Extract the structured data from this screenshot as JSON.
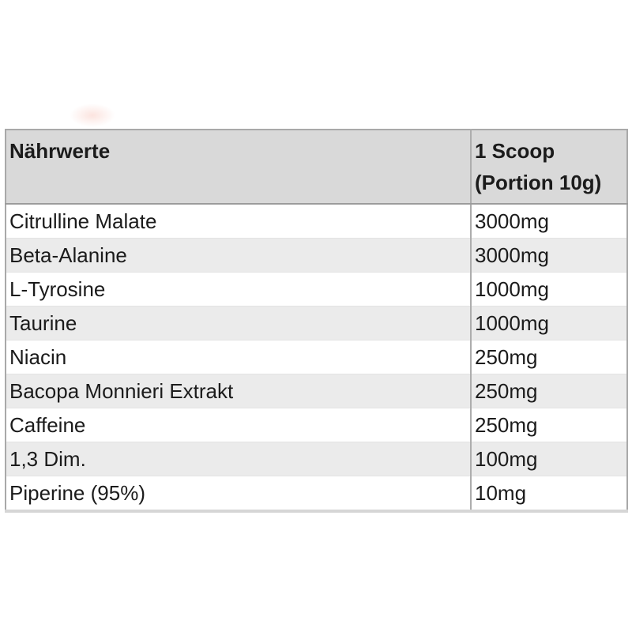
{
  "page": {
    "background_color": "#ffffff",
    "text_color": "#1b1b1b"
  },
  "table": {
    "header": {
      "nutrients_label": "Nährwerte",
      "serving_line1": "1 Scoop",
      "serving_line2": "(Portion 10g)"
    },
    "rows": [
      {
        "name": "Citrulline Malate",
        "amount": "3000mg"
      },
      {
        "name": "Beta-Alanine",
        "amount": "3000mg"
      },
      {
        "name": "L-Tyrosine",
        "amount": "1000mg"
      },
      {
        "name": "Taurine",
        "amount": "1000mg"
      },
      {
        "name": "Niacin",
        "amount": "250mg"
      },
      {
        "name": "Bacopa Monnieri Extrakt",
        "amount": "250mg"
      },
      {
        "name": "Caffeine",
        "amount": "250mg"
      },
      {
        "name": "1,3 Dim.",
        "amount": "100mg"
      },
      {
        "name": "Piperine (95%)",
        "amount": "10mg"
      }
    ],
    "colors": {
      "header_bg": "#d9d9d9",
      "stripe_bg": "#ebebeb",
      "row_bg": "#ffffff",
      "border": "#a9a9a9",
      "divider": "#adadad",
      "text": "#1b1b1b"
    }
  }
}
